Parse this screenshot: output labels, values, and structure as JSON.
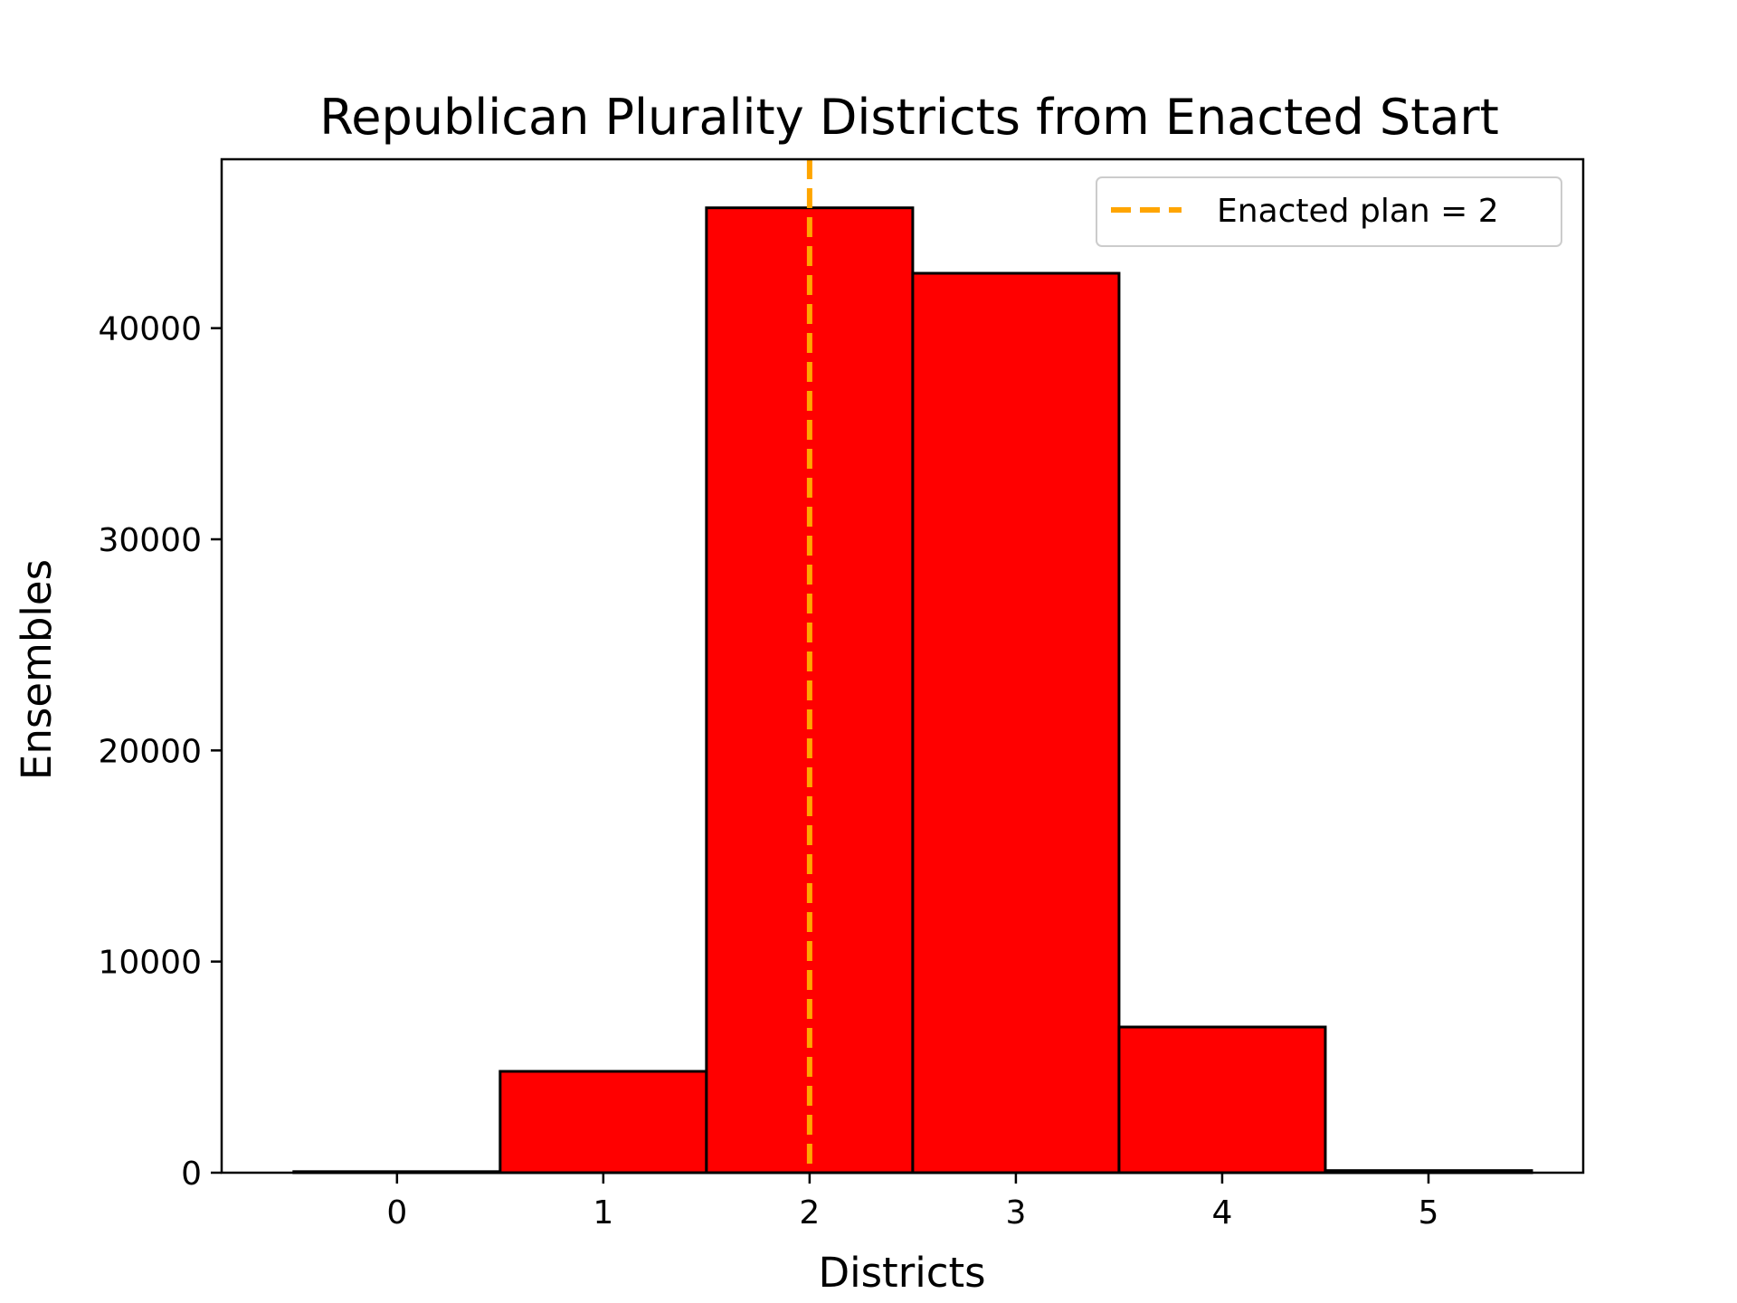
{
  "chart_data": {
    "type": "bar",
    "title": "Republican Plurality Districts from Enacted Start",
    "xlabel": "Districts",
    "ylabel": "Ensembles",
    "categories": [
      0,
      1,
      2,
      3,
      4,
      5
    ],
    "values": [
      50,
      4800,
      45700,
      42600,
      6900,
      100
    ],
    "xlim": [
      -0.85,
      5.75
    ],
    "ylim": [
      0,
      48000
    ],
    "x_ticks": [
      "0",
      "1",
      "2",
      "3",
      "4",
      "5"
    ],
    "y_ticks": [
      "0",
      "10000",
      "20000",
      "30000",
      "40000"
    ],
    "y_tick_values": [
      0,
      10000,
      20000,
      30000,
      40000
    ],
    "bar_color": "#ff0000",
    "bar_edge_color": "#000000",
    "reference_line": {
      "x": 2,
      "label": "Enacted plan = 2",
      "color": "#ffa500",
      "style": "dashed"
    },
    "legend_position": "top-right",
    "grid": false
  }
}
